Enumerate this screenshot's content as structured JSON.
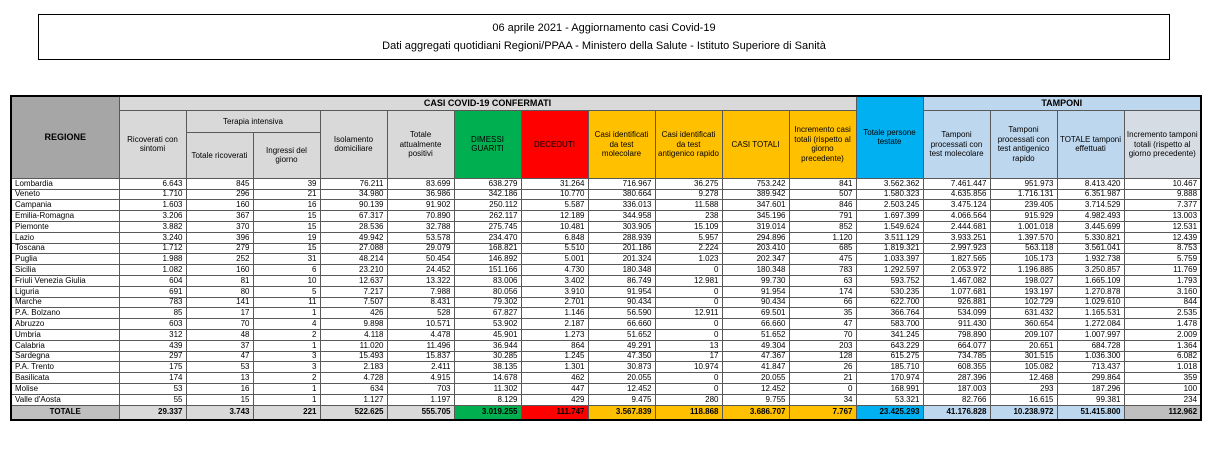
{
  "title": {
    "line1": "06 aprile 2021 - Aggiornamento casi Covid-19",
    "line2": "Dati aggregati quotidiani Regioni/PPAA - Ministero della Salute - Istituto Superiore di Sanità"
  },
  "table": {
    "region_header": "REGIONE",
    "groups": {
      "confirmed": "CASI COVID-19 CONFERMATI",
      "tests": "TAMPONI",
      "intensive": "Terapia intensiva"
    },
    "columns": [
      "Ricoverati con sintomi",
      "Totale ricoverati",
      "Ingressi del giorno",
      "Isolamento domiciliare",
      "Totale attualmente positivi",
      "DIMESSI GUARITI",
      "DECEDUTI",
      "Casi identificati da test molecolare",
      "Casi identificati da test antigenico rapido",
      "CASI TOTALI",
      "Incremento casi totali (rispetto al giorno precedente)",
      "Totale persone testate",
      "Tamponi processati con test molecolare",
      "Tamponi processati con test antigenico rapido",
      "TOTALE tamponi effettuati",
      "Incremento tamponi totali (rispetto al giorno precedente)"
    ],
    "rows": [
      {
        "region": "Lombardia",
        "values": [
          "6.643",
          "845",
          "39",
          "76.211",
          "83.699",
          "638.279",
          "31.264",
          "716.967",
          "36.275",
          "753.242",
          "841",
          "3.562.362",
          "7.461.447",
          "951.973",
          "8.413.420",
          "10.467"
        ]
      },
      {
        "region": "Veneto",
        "values": [
          "1.710",
          "296",
          "21",
          "34.980",
          "36.986",
          "342.186",
          "10.770",
          "380.664",
          "9.278",
          "389.942",
          "507",
          "1.580.323",
          "4.635.856",
          "1.716.131",
          "6.351.987",
          "9.888"
        ]
      },
      {
        "region": "Campania",
        "values": [
          "1.603",
          "160",
          "16",
          "90.139",
          "91.902",
          "250.112",
          "5.587",
          "336.013",
          "11.588",
          "347.601",
          "846",
          "2.503.245",
          "3.475.124",
          "239.405",
          "3.714.529",
          "7.377"
        ]
      },
      {
        "region": "Emilia-Romagna",
        "values": [
          "3.206",
          "367",
          "15",
          "67.317",
          "70.890",
          "262.117",
          "12.189",
          "344.958",
          "238",
          "345.196",
          "791",
          "1.697.399",
          "4.066.564",
          "915.929",
          "4.982.493",
          "13.003"
        ]
      },
      {
        "region": "Piemonte",
        "values": [
          "3.882",
          "370",
          "15",
          "28.536",
          "32.788",
          "275.745",
          "10.481",
          "303.905",
          "15.109",
          "319.014",
          "852",
          "1.549.624",
          "2.444.681",
          "1.001.018",
          "3.445.699",
          "12.531"
        ]
      },
      {
        "region": "Lazio",
        "values": [
          "3.240",
          "396",
          "19",
          "49.942",
          "53.578",
          "234.470",
          "6.848",
          "288.939",
          "5.957",
          "294.896",
          "1.120",
          "3.511.129",
          "3.933.251",
          "1.397.570",
          "5.330.821",
          "12.439"
        ]
      },
      {
        "region": "Toscana",
        "values": [
          "1.712",
          "279",
          "15",
          "27.088",
          "29.079",
          "168.821",
          "5.510",
          "201.186",
          "2.224",
          "203.410",
          "685",
          "1.819.321",
          "2.997.923",
          "563.118",
          "3.561.041",
          "8.753"
        ]
      },
      {
        "region": "Puglia",
        "values": [
          "1.988",
          "252",
          "31",
          "48.214",
          "50.454",
          "146.892",
          "5.001",
          "201.324",
          "1.023",
          "202.347",
          "475",
          "1.033.397",
          "1.827.565",
          "105.173",
          "1.932.738",
          "5.759"
        ]
      },
      {
        "region": "Sicilia",
        "values": [
          "1.082",
          "160",
          "6",
          "23.210",
          "24.452",
          "151.166",
          "4.730",
          "180.348",
          "0",
          "180.348",
          "783",
          "1.292.597",
          "2.053.972",
          "1.196.885",
          "3.250.857",
          "11.769"
        ]
      },
      {
        "region": "Friuli Venezia Giulia",
        "values": [
          "604",
          "81",
          "10",
          "12.637",
          "13.322",
          "83.006",
          "3.402",
          "86.749",
          "12.981",
          "99.730",
          "63",
          "593.752",
          "1.467.082",
          "198.027",
          "1.665.109",
          "1.793"
        ]
      },
      {
        "region": "Liguria",
        "values": [
          "691",
          "80",
          "5",
          "7.217",
          "7.988",
          "80.056",
          "3.910",
          "91.954",
          "0",
          "91.954",
          "174",
          "530.235",
          "1.077.681",
          "193.197",
          "1.270.878",
          "3.160"
        ]
      },
      {
        "region": "Marche",
        "values": [
          "783",
          "141",
          "11",
          "7.507",
          "8.431",
          "79.302",
          "2.701",
          "90.434",
          "0",
          "90.434",
          "66",
          "622.700",
          "926.881",
          "102.729",
          "1.029.610",
          "844"
        ]
      },
      {
        "region": "P.A. Bolzano",
        "values": [
          "85",
          "17",
          "1",
          "426",
          "528",
          "67.827",
          "1.146",
          "56.590",
          "12.911",
          "69.501",
          "35",
          "366.764",
          "534.099",
          "631.432",
          "1.165.531",
          "2.535"
        ]
      },
      {
        "region": "Abruzzo",
        "values": [
          "603",
          "70",
          "4",
          "9.898",
          "10.571",
          "53.902",
          "2.187",
          "66.660",
          "0",
          "66.660",
          "47",
          "583.700",
          "911.430",
          "360.654",
          "1.272.084",
          "1.478"
        ]
      },
      {
        "region": "Umbria",
        "values": [
          "312",
          "48",
          "2",
          "4.118",
          "4.478",
          "45.901",
          "1.273",
          "51.652",
          "0",
          "51.652",
          "70",
          "341.245",
          "798.890",
          "209.107",
          "1.007.997",
          "2.009"
        ]
      },
      {
        "region": "Calabria",
        "values": [
          "439",
          "37",
          "1",
          "11.020",
          "11.496",
          "36.944",
          "864",
          "49.291",
          "13",
          "49.304",
          "203",
          "643.229",
          "664.077",
          "20.651",
          "684.728",
          "1.364"
        ]
      },
      {
        "region": "Sardegna",
        "values": [
          "297",
          "47",
          "3",
          "15.493",
          "15.837",
          "30.285",
          "1.245",
          "47.350",
          "17",
          "47.367",
          "128",
          "615.275",
          "734.785",
          "301.515",
          "1.036.300",
          "6.082"
        ]
      },
      {
        "region": "P.A. Trento",
        "values": [
          "175",
          "53",
          "3",
          "2.183",
          "2.411",
          "38.135",
          "1.301",
          "30.873",
          "10.974",
          "41.847",
          "26",
          "185.710",
          "608.355",
          "105.082",
          "713.437",
          "1.018"
        ]
      },
      {
        "region": "Basilicata",
        "values": [
          "174",
          "13",
          "2",
          "4.728",
          "4.915",
          "14.678",
          "462",
          "20.055",
          "0",
          "20.055",
          "21",
          "170.974",
          "287.396",
          "12.468",
          "299.864",
          "359"
        ]
      },
      {
        "region": "Molise",
        "values": [
          "53",
          "16",
          "1",
          "634",
          "703",
          "11.302",
          "447",
          "12.452",
          "0",
          "12.452",
          "0",
          "168.991",
          "187.003",
          "293",
          "187.296",
          "100"
        ]
      },
      {
        "region": "Valle d'Aosta",
        "values": [
          "55",
          "15",
          "1",
          "1.127",
          "1.197",
          "8.129",
          "429",
          "9.475",
          "280",
          "9.755",
          "34",
          "53.321",
          "82.766",
          "16.615",
          "99.381",
          "234"
        ]
      }
    ],
    "total_row": {
      "label": "TOTALE",
      "values": [
        "29.337",
        "3.743",
        "221",
        "522.625",
        "555.705",
        "3.019.255",
        "111.747",
        "3.567.839",
        "118.868",
        "3.686.707",
        "7.767",
        "23.425.293",
        "41.176.828",
        "10.238.972",
        "51.415.800",
        "112.962"
      ]
    },
    "colors": {
      "recovered_green": "#00B050",
      "deceased_red": "#FF0000",
      "cases_yellow": "#FFC000",
      "tested_cyan": "#00B0F0",
      "tamponi_light_blue": "#BDD7EE",
      "region_header_gray": "#A6A6A6",
      "band_gray": "#D9D9D9",
      "total_row_gray": "#BFBFBF",
      "increment_tamponi_gray": "#D6DCE4"
    }
  }
}
